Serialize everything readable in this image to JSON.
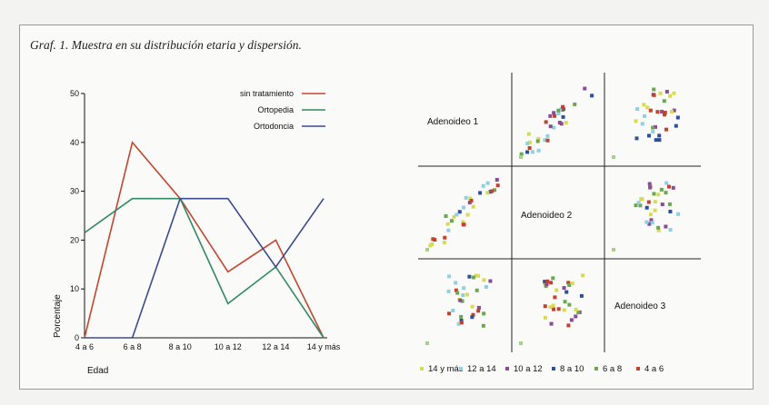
{
  "caption": "Graf. 1. Muestra en su distribución etaria y dispersión.",
  "chart_data": [
    {
      "type": "line",
      "title": "",
      "xlabel": "Edad",
      "ylabel": "Porcentaje",
      "categories": [
        "4 a 6",
        "6 a 8",
        "8 a 10",
        "10 a 12",
        "12 a 14",
        "14 y más"
      ],
      "ylim": [
        0,
        50
      ],
      "yticks": [
        0,
        10,
        20,
        30,
        40,
        50
      ],
      "legend_position": "top-right",
      "grid": false,
      "series": [
        {
          "name": "sin tratamiento",
          "color": "#c8442c",
          "values": [
            0,
            40,
            28.5,
            13.5,
            20,
            0
          ]
        },
        {
          "name": "Ortopedia",
          "color": "#2f8a63",
          "values": [
            21.5,
            28.5,
            28.5,
            7,
            14.5,
            0
          ]
        },
        {
          "name": "Ortodoncia",
          "color": "#3a4a93",
          "values": [
            0,
            0,
            28.5,
            28.5,
            14.5,
            28.5
          ]
        }
      ]
    },
    {
      "type": "scatter",
      "subtype": "scatterplot-matrix",
      "variables": [
        "Adenoideo 1",
        "Adenoideo 2",
        "Adenoideo 3"
      ],
      "legend_position": "bottom",
      "groups": [
        {
          "name": "14 y más",
          "color": "#d9dc4a"
        },
        {
          "name": "12 a 14",
          "color": "#8fd0e0"
        },
        {
          "name": "10 a 12",
          "color": "#8a4a94"
        },
        {
          "name": "8 a 10",
          "color": "#2d4f9c"
        },
        {
          "name": "6 a 8",
          "color": "#6aa84f"
        },
        {
          "name": "4 a 6",
          "color": "#c9402a"
        }
      ]
    }
  ]
}
